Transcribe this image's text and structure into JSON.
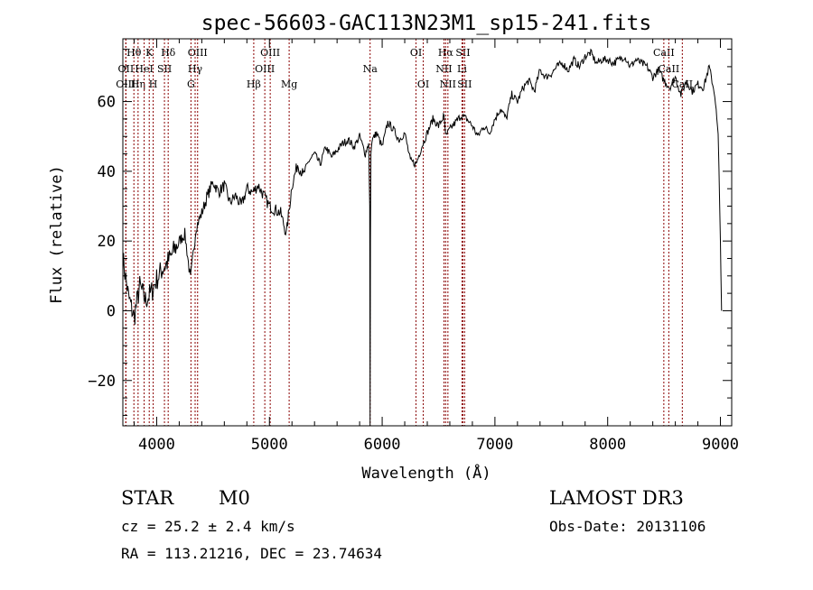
{
  "chart_data": {
    "type": "line",
    "title": "spec-56603-GAC113N23M1_sp15-241.fits",
    "xlabel": "Wavelength (Å)",
    "ylabel": "Flux (relative)",
    "xlim": [
      3700,
      9100
    ],
    "ylim": [
      -33,
      78
    ],
    "xticks": [
      4000,
      5000,
      6000,
      7000,
      8000,
      9000
    ],
    "xtick_labels": [
      "4000",
      "5000",
      "6000",
      "7000",
      "8000",
      "9000"
    ],
    "yticks": [
      -20,
      0,
      20,
      40,
      60
    ],
    "ytick_labels": [
      "−20",
      "0",
      "20",
      "40",
      "60"
    ],
    "series": [
      {
        "name": "spectrum",
        "x": [
          3700,
          3750,
          3800,
          3850,
          3900,
          3950,
          4000,
          4050,
          4100,
          4150,
          4200,
          4250,
          4300,
          4350,
          4400,
          4450,
          4500,
          4550,
          4600,
          4650,
          4700,
          4750,
          4800,
          4850,
          4900,
          4950,
          5000,
          5050,
          5100,
          5150,
          5200,
          5250,
          5300,
          5350,
          5400,
          5450,
          5500,
          5550,
          5600,
          5650,
          5700,
          5750,
          5800,
          5850,
          5880,
          5890,
          5893,
          5896,
          5900,
          5910,
          5950,
          6000,
          6050,
          6100,
          6150,
          6200,
          6250,
          6300,
          6350,
          6400,
          6450,
          6500,
          6550,
          6563,
          6600,
          6650,
          6700,
          6750,
          6800,
          6850,
          6900,
          6950,
          7000,
          7050,
          7100,
          7150,
          7200,
          7250,
          7300,
          7350,
          7400,
          7450,
          7500,
          7550,
          7600,
          7650,
          7700,
          7750,
          7800,
          7850,
          7900,
          7950,
          8000,
          8050,
          8100,
          8150,
          8200,
          8250,
          8300,
          8350,
          8400,
          8450,
          8500,
          8550,
          8600,
          8650,
          8700,
          8750,
          8800,
          8850,
          8900,
          8950,
          8980,
          9000,
          9010
        ],
        "y": [
          15,
          4,
          -2,
          7,
          3,
          5,
          9,
          12,
          14,
          17,
          20,
          22,
          9,
          24,
          28,
          33,
          37,
          34,
          36,
          31,
          33,
          30,
          35,
          34,
          36,
          33,
          30,
          29,
          28,
          22,
          36,
          42,
          39,
          43,
          45,
          42,
          47,
          44,
          46,
          48,
          49,
          47,
          50,
          45,
          48,
          30,
          -33,
          20,
          45,
          49,
          51,
          47,
          54,
          52,
          49,
          51,
          43,
          42,
          47,
          51,
          55,
          53,
          56,
          50,
          52,
          54,
          56,
          55,
          53,
          50,
          53,
          51,
          55,
          58,
          55,
          62,
          60,
          64,
          66,
          63,
          69,
          67,
          68,
          70,
          71,
          69,
          72,
          70,
          73,
          74,
          71,
          72,
          72,
          71,
          72,
          73,
          70,
          72,
          71,
          70,
          67,
          69,
          66,
          64,
          67,
          62,
          66,
          63,
          65,
          64,
          70,
          62,
          50,
          20,
          0
        ]
      }
    ],
    "lines": [
      {
        "label": "Hθ",
        "x": 3798,
        "row": 0
      },
      {
        "label": "OII",
        "x": 3727,
        "row": 1
      },
      {
        "label": "OIII",
        "x": 3726,
        "row": 2
      },
      {
        "label": "Hη",
        "x": 3835,
        "row": 2
      },
      {
        "label": "K",
        "x": 3934,
        "row": 0
      },
      {
        "label": "HeI",
        "x": 3889,
        "row": 1
      },
      {
        "label": "H",
        "x": 3969,
        "row": 2
      },
      {
        "label": "SII",
        "x": 4069,
        "row": 1
      },
      {
        "label": "Hδ",
        "x": 4102,
        "row": 0
      },
      {
        "label": "OIII",
        "x": 4363,
        "row": 0
      },
      {
        "label": "Hγ",
        "x": 4341,
        "row": 1
      },
      {
        "label": "G",
        "x": 4304,
        "row": 2
      },
      {
        "label": "Hβ",
        "x": 4861,
        "row": 2
      },
      {
        "label": "OIII",
        "x": 4959,
        "row": 1
      },
      {
        "label": "OIII",
        "x": 5007,
        "row": 0
      },
      {
        "label": "Mg",
        "x": 5175,
        "row": 2
      },
      {
        "label": "Na",
        "x": 5893,
        "row": 1
      },
      {
        "label": "OI",
        "x": 6300,
        "row": 0
      },
      {
        "label": "OI",
        "x": 6364,
        "row": 2
      },
      {
        "label": "Hα",
        "x": 6563,
        "row": 0
      },
      {
        "label": "NII",
        "x": 6548,
        "row": 1
      },
      {
        "label": "NII",
        "x": 6583,
        "row": 2
      },
      {
        "label": "SII",
        "x": 6716,
        "row": 0
      },
      {
        "label": "Li",
        "x": 6708,
        "row": 1
      },
      {
        "label": "SII",
        "x": 6731,
        "row": 2
      },
      {
        "label": "CaII",
        "x": 8498,
        "row": 0
      },
      {
        "label": "CaII",
        "x": 8542,
        "row": 1
      },
      {
        "label": "CaII",
        "x": 8662,
        "row": 2
      }
    ],
    "line_color": "#8b0000"
  },
  "footer": {
    "class_label": "STAR",
    "subclass": "M0",
    "cz": "cz = 25.2 ± 2.4 km/s",
    "coords": "RA = 113.21216, DEC =  23.74634",
    "survey": "LAMOST DR3",
    "obs_date": "Obs-Date: 20131106"
  }
}
